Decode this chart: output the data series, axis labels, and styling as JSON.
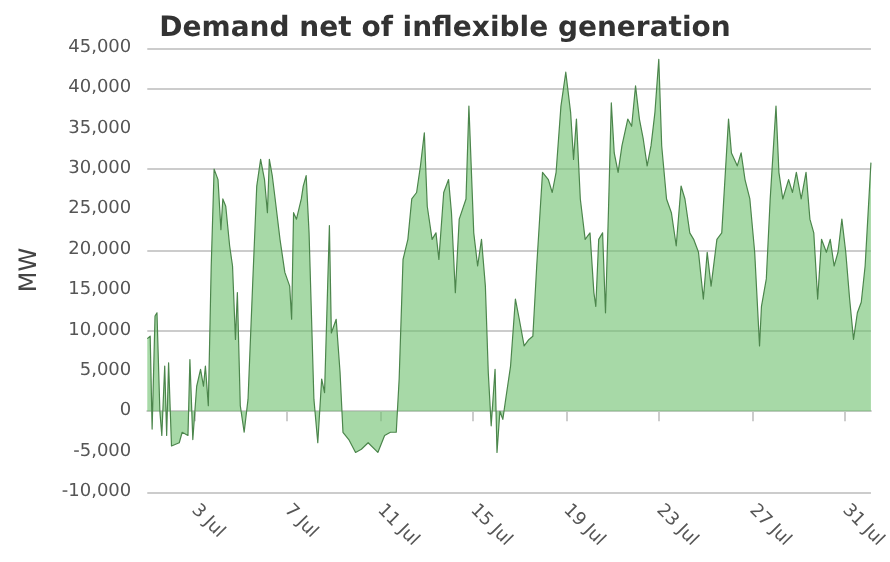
{
  "chart_data": {
    "type": "area",
    "title": "Demand net of inflexible generation",
    "ylabel": "MW",
    "x": [
      "--07-01T00:00",
      "--07-01T03:00",
      "--07-01T05:00",
      "--07-01T08:00",
      "--07-01T10:00",
      "--07-01T13:00",
      "--07-01T15:00",
      "--07-01T18:00",
      "--07-01T20:00",
      "--07-01T22:00",
      "--07-02T01:00",
      "--07-02T09:00",
      "--07-02T12:00",
      "--07-02T18:00",
      "--07-02T20:00",
      "--07-02T23:00",
      "--07-03T03:00",
      "--07-03T07:00",
      "--07-03T10:00",
      "--07-03T12:00",
      "--07-03T15:00",
      "--07-03T18:00",
      "--07-03T21:00",
      "--07-04T01:00",
      "--07-04T04:00",
      "--07-04T06:00",
      "--07-04T09:00",
      "--07-04T13:00",
      "--07-04T16:00",
      "--07-04T19:00",
      "--07-04T21:00",
      "--07-05T00:00",
      "--07-05T04:00",
      "--07-05T08:00",
      "--07-05T13:00",
      "--07-05T17:00",
      "--07-05T21:00",
      "--07-06T01:00",
      "--07-06T04:00",
      "--07-06T06:00",
      "--07-06T09:00",
      "--07-06T12:00",
      "--07-06T17:00",
      "--07-06T22:00",
      "--07-07T03:00",
      "--07-07T05:00",
      "--07-07T07:00",
      "--07-07T10:00",
      "--07-07T15:00",
      "--07-07T17:00",
      "--07-07T20:00",
      "--07-07T23:00",
      "--07-08T04:00",
      "--07-08T08:00",
      "--07-08T12:00",
      "--07-08T15:00",
      "--07-08T20:00",
      "--07-08T22:00",
      "--07-09T03:00",
      "--07-09T07:00",
      "--07-09T10:00",
      "--07-09T16:00",
      "--07-09T23:00",
      "--07-10T05:00",
      "--07-10T12:00",
      "--07-10T22:00",
      "--07-11T05:00",
      "--07-11T11:00",
      "--07-11T17:00",
      "--07-11T20:00",
      "--07-12T00:00",
      "--07-12T05:00",
      "--07-12T09:00",
      "--07-12T14:00",
      "--07-12T18:00",
      "--07-12T22:00",
      "--07-13T01:00",
      "--07-13T06:00",
      "--07-13T10:00",
      "--07-13T13:00",
      "--07-13T18:00",
      "--07-13T23:00",
      "--07-14T02:00",
      "--07-14T06:00",
      "--07-14T10:00",
      "--07-14T17:00",
      "--07-14T20:00",
      "--07-15T01:00",
      "--07-15T05:00",
      "--07-15T09:00",
      "--07-15T13:00",
      "--07-15T16:00",
      "--07-15T19:00",
      "--07-15T23:00",
      "--07-16T01:00",
      "--07-16T04:00",
      "--07-16T07:00",
      "--07-16T10:00",
      "--07-16T15:00",
      "--07-16T20:00",
      "--07-17T00:00",
      "--07-17T05:00",
      "--07-17T10:00",
      "--07-17T14:00",
      "--07-17T18:00",
      "--07-18T00:00",
      "--07-18T06:00",
      "--07-18T10:00",
      "--07-18T14:00",
      "--07-18T19:00",
      "--07-19T00:00",
      "--07-19T05:00",
      "--07-19T08:00",
      "--07-19T11:00",
      "--07-19T15:00",
      "--07-19T20:00",
      "--07-20T01:00",
      "--07-20T05:00",
      "--07-20T07:00",
      "--07-20T10:00",
      "--07-20T14:00",
      "--07-20T17:00",
      "--07-20T20:00",
      "--07-20T23:00",
      "--07-21T02:00",
      "--07-21T06:00",
      "--07-21T10:00",
      "--07-21T16:00",
      "--07-21T20:00",
      "--07-22T00:00",
      "--07-22T04:00",
      "--07-22T08:00",
      "--07-22T12:00",
      "--07-22T16:00",
      "--07-22T20:00",
      "--07-23T00:00",
      "--07-23T03:00",
      "--07-23T08:00",
      "--07-23T13:00",
      "--07-23T18:00",
      "--07-23T23:00",
      "--07-24T03:00",
      "--07-24T08:00",
      "--07-24T12:00",
      "--07-24T17:00",
      "--07-24T22:00",
      "--07-25T02:00",
      "--07-25T06:00",
      "--07-25T12:00",
      "--07-25T17:00",
      "--07-26T00:00",
      "--07-26T03:00",
      "--07-26T09:00",
      "--07-26T13:00",
      "--07-26T17:00",
      "--07-26T22:00",
      "--07-27T03:00",
      "--07-27T08:00",
      "--07-27T10:00",
      "--07-27T15:00",
      "--07-27T19:00",
      "--07-28T01:00",
      "--07-28T04:00",
      "--07-28T08:00",
      "--07-28T14:00",
      "--07-28T18:00",
      "--07-28T22:00",
      "--07-29T03:00",
      "--07-29T08:00",
      "--07-29T12:00",
      "--07-29T16:00",
      "--07-29T20:00",
      "--07-30T00:00",
      "--07-30T05:00",
      "--07-30T09:00",
      "--07-30T13:00",
      "--07-30T17:00",
      "--07-30T21:00",
      "--07-31T01:00",
      "--07-31T05:00",
      "--07-31T09:00",
      "--07-31T13:00",
      "--07-31T17:00",
      "--07-31T21:00",
      "--08-01T03:00"
    ],
    "values": [
      9000,
      9300,
      -2200,
      11800,
      12200,
      0,
      -3000,
      5600,
      -3000,
      6000,
      -4300,
      -3900,
      -2600,
      -3000,
      6400,
      -3500,
      3100,
      5200,
      3100,
      5600,
      700,
      18000,
      30000,
      28700,
      22500,
      26300,
      25400,
      20500,
      18000,
      8900,
      14700,
      700,
      -2600,
      1500,
      16400,
      27900,
      31200,
      28700,
      24600,
      31200,
      29200,
      26300,
      21300,
      17200,
      15500,
      11400,
      24600,
      23800,
      26300,
      27900,
      29200,
      22100,
      1500,
      -3900,
      4000,
      2300,
      23000,
      9700,
      11400,
      4800,
      -2600,
      -3500,
      -5100,
      -4700,
      -3900,
      -5100,
      -3000,
      -2600,
      -2600,
      4000,
      18800,
      21300,
      26300,
      27100,
      30400,
      34500,
      25400,
      21300,
      22100,
      18800,
      27100,
      28700,
      24600,
      14700,
      23800,
      26300,
      37800,
      22100,
      18000,
      21300,
      15500,
      4800,
      -1800,
      5200,
      -5100,
      0,
      -1000,
      1500,
      5600,
      13900,
      11400,
      8100,
      8900,
      9300,
      18000,
      29600,
      28700,
      27100,
      29600,
      37800,
      42000,
      37000,
      31200,
      36200,
      26300,
      21300,
      22100,
      14700,
      13000,
      21300,
      22100,
      12200,
      24600,
      38200,
      32000,
      29600,
      32900,
      36200,
      35300,
      40300,
      36200,
      33700,
      30400,
      32900,
      37000,
      43600,
      32900,
      26300,
      24600,
      20500,
      27900,
      26300,
      22100,
      21300,
      19700,
      13900,
      19700,
      15500,
      21300,
      22100,
      36200,
      32000,
      30400,
      32000,
      28700,
      26300,
      19700,
      8100,
      13000,
      16400,
      26300,
      37800,
      29600,
      26300,
      28700,
      27100,
      29600,
      26300,
      29600,
      23800,
      22100,
      13900,
      21300,
      19700,
      21300,
      18000,
      19700,
      23800,
      19700,
      13900,
      8900,
      12200,
      13500,
      18000,
      30800
    ],
    "color": "#6dbf6d",
    "xlim": [
      "--07-01T00:00",
      "--08-01T03:00"
    ],
    "xticks": [
      {
        "value": "--07-03",
        "label": "3 Jul"
      },
      {
        "value": "--07-07",
        "label": "7 Jul"
      },
      {
        "value": "--07-11",
        "label": "11 Jul"
      },
      {
        "value": "--07-15",
        "label": "15 Jul"
      },
      {
        "value": "--07-19",
        "label": "19 Jul"
      },
      {
        "value": "--07-23",
        "label": "23 Jul"
      },
      {
        "value": "--07-27",
        "label": "27 Jul"
      },
      {
        "value": "--07-31",
        "label": "31 Jul"
      }
    ],
    "ylim": [
      -10000,
      45000
    ],
    "yticks": [
      {
        "value": -10000,
        "label": "-10,000"
      },
      {
        "value": -5000,
        "label": "-5,000"
      },
      0,
      {
        "value": 5000,
        "label": "5,000"
      },
      {
        "value": 10000,
        "label": "10,000"
      },
      {
        "value": 15000,
        "label": "15,000"
      },
      {
        "value": 20000,
        "label": "20,000"
      },
      {
        "value": 25000,
        "label": "25,000"
      },
      {
        "value": 30000,
        "label": "30,000"
      },
      {
        "value": 35000,
        "label": "35,000"
      },
      {
        "value": 40000,
        "label": "40,000"
      },
      {
        "value": 45000,
        "label": "45,000"
      }
    ],
    "grid": "y"
  }
}
